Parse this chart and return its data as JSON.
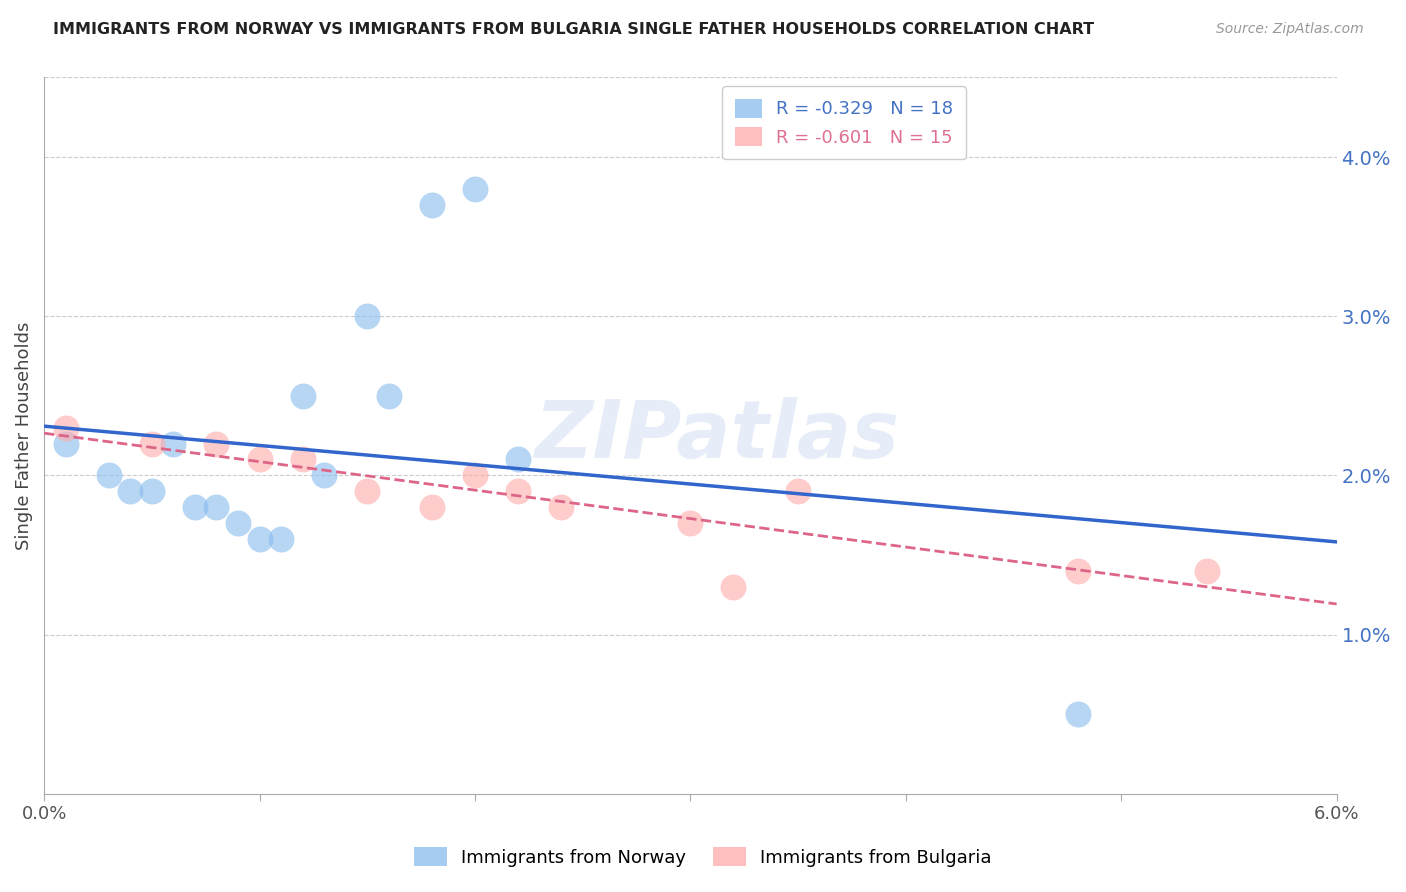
{
  "title": "IMMIGRANTS FROM NORWAY VS IMMIGRANTS FROM BULGARIA SINGLE FATHER HOUSEHOLDS CORRELATION CHART",
  "source": "Source: ZipAtlas.com",
  "ylabel": "Single Father Households",
  "watermark": "ZIPatlas",
  "norway_r": -0.329,
  "norway_n": 18,
  "bulgaria_r": -0.601,
  "bulgaria_n": 15,
  "norway_color": "#88bbee",
  "bulgaria_color": "#ffaaaa",
  "norway_line_color": "#3366cc",
  "bulgaria_line_color": "#dd6688",
  "norway_x": [
    0.001,
    0.003,
    0.004,
    0.005,
    0.006,
    0.007,
    0.008,
    0.009,
    0.01,
    0.011,
    0.012,
    0.013,
    0.015,
    0.016,
    0.018,
    0.02,
    0.022,
    0.048
  ],
  "norway_y": [
    0.022,
    0.02,
    0.019,
    0.019,
    0.022,
    0.018,
    0.018,
    0.017,
    0.016,
    0.016,
    0.025,
    0.02,
    0.03,
    0.025,
    0.037,
    0.038,
    0.021,
    0.005
  ],
  "bulgaria_x": [
    0.001,
    0.005,
    0.008,
    0.01,
    0.012,
    0.015,
    0.018,
    0.02,
    0.022,
    0.024,
    0.03,
    0.032,
    0.035,
    0.048,
    0.054
  ],
  "bulgaria_y": [
    0.023,
    0.022,
    0.022,
    0.021,
    0.021,
    0.019,
    0.018,
    0.02,
    0.019,
    0.018,
    0.017,
    0.013,
    0.019,
    0.014,
    0.014
  ],
  "xlim": [
    0.0,
    0.06
  ],
  "ylim": [
    0.0,
    0.045
  ],
  "yticks": [
    0.01,
    0.02,
    0.03,
    0.04
  ],
  "ytick_labels": [
    "1.0%",
    "2.0%",
    "3.0%",
    "4.0%"
  ],
  "xticks": [
    0.0,
    0.01,
    0.02,
    0.03,
    0.04,
    0.05,
    0.06
  ],
  "xtick_labels": [
    "0.0%",
    "",
    "",
    "",
    "",
    "",
    "6.0%"
  ],
  "background_color": "#ffffff",
  "grid_color": "#cccccc"
}
